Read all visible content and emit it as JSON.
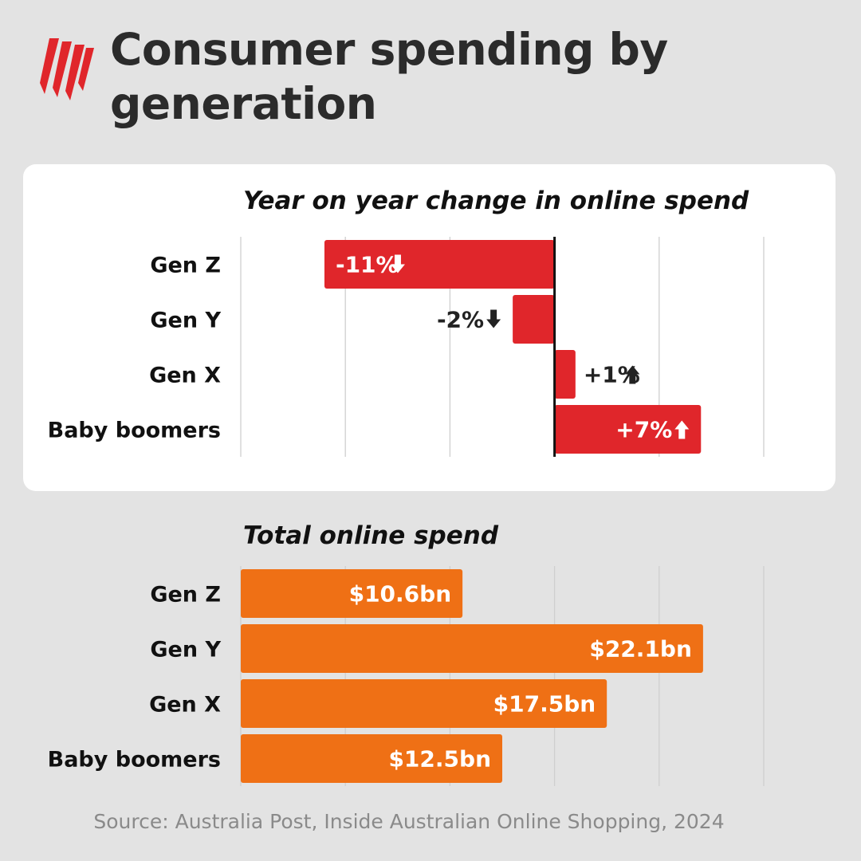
{
  "title": "Consumer spending by generation",
  "source": "Source: Australia Post, Inside Australian Online Shopping, 2024",
  "colors": {
    "logo": "#e0262b",
    "yoy_bar": "#e0262b",
    "total_bar": "#ef7015",
    "background": "#e3e3e3"
  },
  "chart_data": [
    {
      "type": "bar",
      "orientation": "horizontal",
      "title": "Year on year change in online spend",
      "categories": [
        "Gen Z",
        "Gen Y",
        "Gen X",
        "Baby boomers"
      ],
      "values": [
        -11,
        -2,
        1,
        7
      ],
      "labels": [
        "-11%",
        "-2%",
        "+1%",
        "+7%"
      ],
      "arrows": [
        "down-arrow-icon",
        "down-arrow-icon",
        "up-arrow-icon",
        "up-arrow-icon"
      ],
      "xlim": [
        -15,
        10
      ],
      "grid": true
    },
    {
      "type": "bar",
      "orientation": "horizontal",
      "title": "Total online spend",
      "categories": [
        "Gen Z",
        "Gen Y",
        "Gen X",
        "Baby boomers"
      ],
      "values": [
        10.6,
        22.1,
        17.5,
        12.5
      ],
      "labels": [
        "$10.6bn",
        "$22.1bn",
        "$17.5bn",
        "$12.5bn"
      ],
      "xlim": [
        0,
        25
      ],
      "grid": true
    }
  ]
}
